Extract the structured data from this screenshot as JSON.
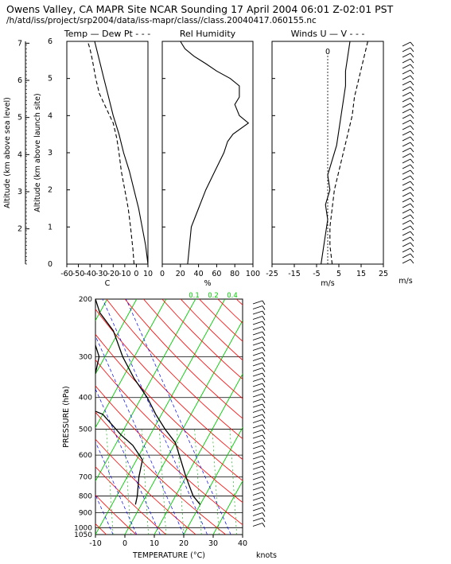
{
  "header": {
    "title": "Owens Valley, CA MAPR Site NCAR Sounding 17 April 2004 06:01 Z-02:01 PST",
    "path": "/h/atd/iss/project/srp2004/data/iss-mapr/class//class.20040417.060155.nc"
  },
  "colors": {
    "ink": "#000000",
    "isotherm": "#00cc00",
    "dry_adiabat": "#ff0000",
    "moist_adiabat": "#0000ff",
    "mixing_ratio": "#00aa00"
  },
  "chart_data": [
    {
      "type": "line",
      "panel": "temperature",
      "title": "Temp — Dew Pt - - -",
      "xlabel": "C",
      "ylabel_left": "Altitude (km above sea level)",
      "ylabel_right": "Altitude (km above launch site)",
      "xlim": [
        -60,
        10
      ],
      "ylim": [
        0,
        6
      ],
      "xticks": [
        "-60",
        "-50",
        "-40",
        "-30",
        "-20",
        "-10",
        "0",
        "10"
      ],
      "asl_ticks": [
        "2",
        "3",
        "4",
        "5",
        "6",
        "7"
      ],
      "agl_ticks": [
        "0",
        "1",
        "2",
        "3",
        "4",
        "5",
        "6"
      ],
      "series": [
        {
          "name": "Temp",
          "style": "solid",
          "points": [
            [
              10,
              0
            ],
            [
              8,
              0.5
            ],
            [
              5,
              1
            ],
            [
              2,
              1.5
            ],
            [
              -2,
              2
            ],
            [
              -6,
              2.5
            ],
            [
              -11,
              3
            ],
            [
              -15,
              3.5
            ],
            [
              -20,
              4
            ],
            [
              -24,
              4.5
            ],
            [
              -28,
              5
            ],
            [
              -32,
              5.5
            ],
            [
              -36,
              6
            ]
          ]
        },
        {
          "name": "Dew Pt",
          "style": "dashed",
          "points": [
            [
              -2,
              0
            ],
            [
              -3,
              0.4
            ],
            [
              -5,
              1
            ],
            [
              -7,
              1.5
            ],
            [
              -10,
              2
            ],
            [
              -13,
              2.5
            ],
            [
              -15,
              3
            ],
            [
              -17,
              3.4
            ],
            [
              -20,
              3.8
            ],
            [
              -26,
              4.2
            ],
            [
              -32,
              4.6
            ],
            [
              -35,
              5
            ],
            [
              -38,
              5.5
            ],
            [
              -40,
              5.8
            ],
            [
              -42,
              6
            ]
          ]
        }
      ]
    },
    {
      "type": "line",
      "panel": "humidity",
      "title": "Rel Humidity",
      "xlabel": "%",
      "xlim": [
        0,
        100
      ],
      "ylim": [
        0,
        6
      ],
      "xticks": [
        "0",
        "20",
        "40",
        "60",
        "80",
        "100"
      ],
      "series": [
        {
          "name": "RH",
          "points": [
            [
              28,
              0
            ],
            [
              30,
              0.5
            ],
            [
              32,
              1
            ],
            [
              40,
              1.5
            ],
            [
              48,
              2
            ],
            [
              58,
              2.5
            ],
            [
              68,
              3
            ],
            [
              72,
              3.3
            ],
            [
              78,
              3.5
            ],
            [
              95,
              3.8
            ],
            [
              85,
              4
            ],
            [
              80,
              4.3
            ],
            [
              85,
              4.5
            ],
            [
              85,
              4.8
            ],
            [
              75,
              5
            ],
            [
              60,
              5.2
            ],
            [
              48,
              5.4
            ],
            [
              35,
              5.6
            ],
            [
              25,
              5.8
            ],
            [
              20,
              6
            ]
          ]
        }
      ]
    },
    {
      "type": "line",
      "panel": "winds",
      "title": "Winds U — V - - -",
      "xlabel": "m/s",
      "xlim": [
        -25,
        25
      ],
      "ylim": [
        0,
        6
      ],
      "xticks": [
        "-25",
        "-15",
        "-5",
        "5",
        "15",
        "25"
      ],
      "zero_label": "0",
      "barb_units": "m/s",
      "series": [
        {
          "name": "U",
          "style": "solid",
          "points": [
            [
              -3,
              0
            ],
            [
              -2,
              0.4
            ],
            [
              -1,
              0.8
            ],
            [
              0,
              1.2
            ],
            [
              -1,
              1.6
            ],
            [
              1,
              2
            ],
            [
              0,
              2.4
            ],
            [
              2,
              2.8
            ],
            [
              4,
              3.2
            ],
            [
              5,
              3.6
            ],
            [
              6,
              4
            ],
            [
              7,
              4.4
            ],
            [
              8,
              4.8
            ],
            [
              8,
              5.2
            ],
            [
              9,
              5.6
            ],
            [
              10,
              6
            ]
          ]
        },
        {
          "name": "V",
          "style": "dashed",
          "points": [
            [
              2,
              0
            ],
            [
              1,
              0.5
            ],
            [
              1,
              1
            ],
            [
              2,
              1.5
            ],
            [
              3,
              2
            ],
            [
              5,
              2.5
            ],
            [
              7,
              3
            ],
            [
              9,
              3.5
            ],
            [
              11,
              4
            ],
            [
              12,
              4.5
            ],
            [
              14,
              5
            ],
            [
              16,
              5.5
            ],
            [
              18,
              6
            ]
          ]
        }
      ]
    },
    {
      "type": "line",
      "panel": "skew-t",
      "xlabel": "TEMPERATURE (°C)",
      "ylabel": "PRESSURE (hPa)",
      "barb_units": "knots",
      "xlim": [
        -10,
        40
      ],
      "plim": [
        1050,
        200
      ],
      "xticks": [
        "-10",
        "0",
        "10",
        "20",
        "30",
        "40"
      ],
      "pticks": [
        "200",
        "300",
        "400",
        "500",
        "600",
        "700",
        "800",
        "900",
        "1000",
        "1050"
      ],
      "mixing_ratio_labels": [
        "0.1",
        "0.2",
        "0.4"
      ],
      "series": [
        {
          "name": "Temperature",
          "style": "solid",
          "points": [
            [
              20,
              850
            ],
            [
              16,
              800
            ],
            [
              10,
              700
            ],
            [
              5,
              620
            ],
            [
              0,
              550
            ],
            [
              -6,
              500
            ],
            [
              -12,
              450
            ],
            [
              -18,
              400
            ],
            [
              -26,
              350
            ],
            [
              -34,
              300
            ],
            [
              -42,
              250
            ],
            [
              -50,
              220
            ],
            [
              -54,
              200
            ]
          ]
        },
        {
          "name": "Dew Point",
          "style": "solid",
          "points": [
            [
              -2,
              850
            ],
            [
              -3,
              800
            ],
            [
              -6,
              700
            ],
            [
              -8,
              620
            ],
            [
              -14,
              560
            ],
            [
              -20,
              520
            ],
            [
              -30,
              450
            ],
            [
              -40,
              420
            ],
            [
              -44,
              380
            ],
            [
              -40,
              340
            ],
            [
              -42,
              300
            ],
            [
              -48,
              260
            ],
            [
              -56,
              220
            ],
            [
              -60,
              200
            ]
          ]
        }
      ]
    }
  ]
}
